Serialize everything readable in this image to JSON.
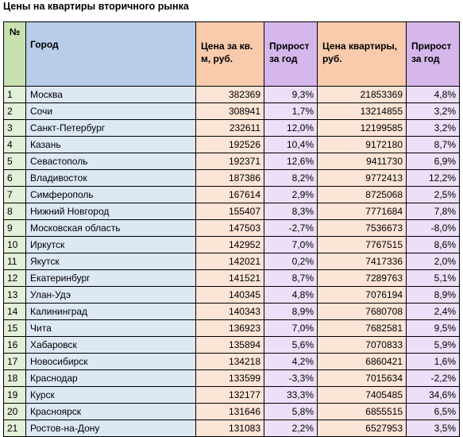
{
  "title": "Цены на квартиры вторичного рынка",
  "headers": {
    "num": "№",
    "city": "Город",
    "price_sqm": "Цена за кв. м, руб.",
    "growth_sqm": "Прирост за год",
    "price_flat": "Цена квартиры, руб.",
    "growth_flat": "Прирост за год"
  },
  "rows": [
    [
      "1",
      "Москва",
      "382369",
      "9,3%",
      "21853369",
      "4,8%"
    ],
    [
      "2",
      "Сочи",
      "308941",
      "1,7%",
      "13214855",
      "3,2%"
    ],
    [
      "3",
      "Санкт-Петербург",
      "232611",
      "12,0%",
      "12199585",
      "3,2%"
    ],
    [
      "4",
      "Казань",
      "192526",
      "10,4%",
      "9172180",
      "8,7%"
    ],
    [
      "5",
      "Севастополь",
      "192371",
      "12,6%",
      "9411730",
      "6,9%"
    ],
    [
      "6",
      "Владивосток",
      "187386",
      "8,2%",
      "9772413",
      "12,2%"
    ],
    [
      "7",
      "Симферополь",
      "167614",
      "2,9%",
      "8725068",
      "2,5%"
    ],
    [
      "8",
      "Нижний Новгород",
      "155407",
      "8,3%",
      "7771684",
      "7,8%"
    ],
    [
      "9",
      "Московская область",
      "147503",
      "-2,7%",
      "7536673",
      "-8,0%"
    ],
    [
      "10",
      "Иркутск",
      "142952",
      "7,0%",
      "7767515",
      "8,6%"
    ],
    [
      "11",
      "Якутск",
      "142021",
      "0,2%",
      "7417336",
      "2,0%"
    ],
    [
      "12",
      "Екатеринбург",
      "141521",
      "8,7%",
      "7289763",
      "5,1%"
    ],
    [
      "13",
      "Улан-Удэ",
      "140345",
      "4,8%",
      "7076194",
      "8,9%"
    ],
    [
      "14",
      "Калининград",
      "140343",
      "8,9%",
      "7680708",
      "2,4%"
    ],
    [
      "15",
      "Чита",
      "136923",
      "7,0%",
      "7682581",
      "9,5%"
    ],
    [
      "16",
      "Хабаровск",
      "135894",
      "5,6%",
      "7070833",
      "5,9%"
    ],
    [
      "17",
      "Новосибирск",
      "134218",
      "4,2%",
      "6860421",
      "1,6%"
    ],
    [
      "18",
      "Краснодар",
      "133599",
      "-3,3%",
      "7015634",
      "-2,2%"
    ],
    [
      "19",
      "Курск",
      "132177",
      "33,3%",
      "7405485",
      "34,6%"
    ],
    [
      "20",
      "Красноярск",
      "131646",
      "5,8%",
      "6855515",
      "6,5%"
    ],
    [
      "21",
      "Ростов-на-Дону",
      "131083",
      "2,2%",
      "6527953",
      "3,5%"
    ]
  ]
}
